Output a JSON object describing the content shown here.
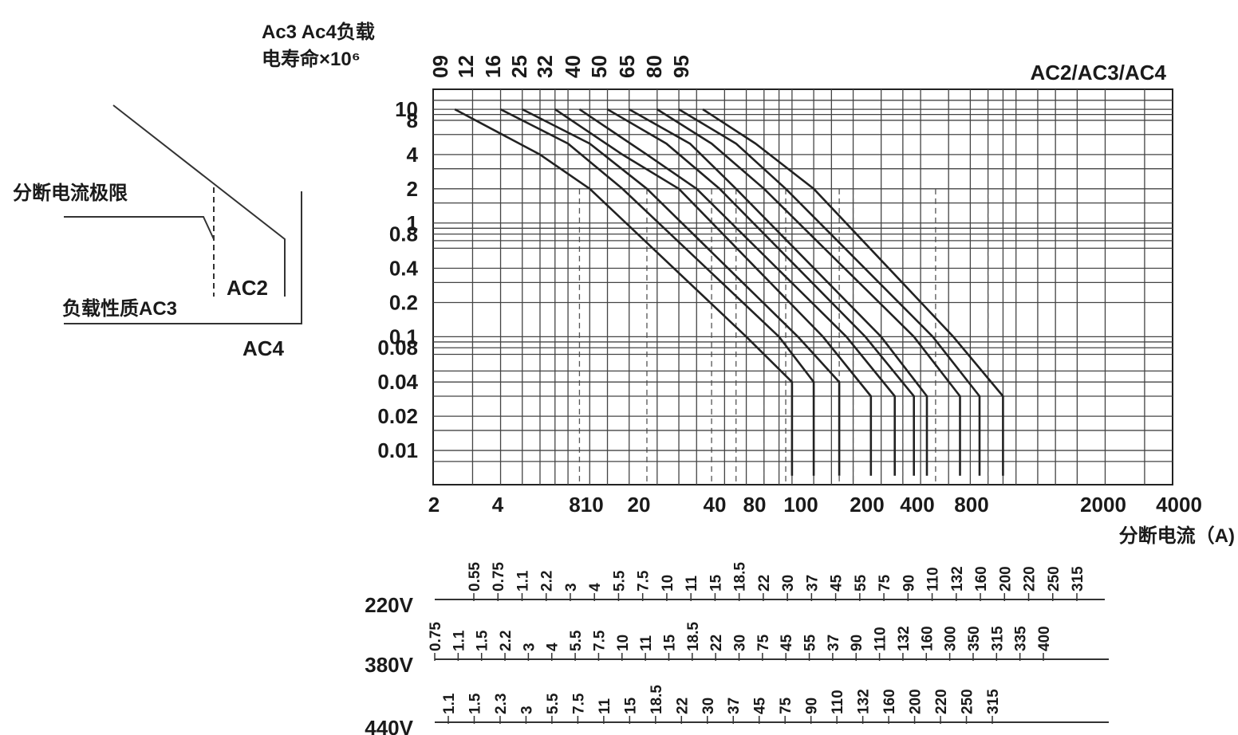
{
  "chart_data": {
    "type": "line",
    "ylabel_line1": "Ac3 Ac4负载",
    "ylabel_line2": "电寿命×10⁶",
    "xlabel": "分断电流（A)",
    "series_title": "AC2/AC3/AC4",
    "x_scale": "log",
    "y_scale": "log",
    "x_ticks": [
      "2",
      "4",
      "810",
      "20",
      "40",
      "80",
      "100",
      "200",
      "400",
      "800",
      "2000",
      "4000"
    ],
    "y_ticks": [
      "10",
      "8",
      "4",
      "2",
      "1",
      "0.8",
      "0.4",
      "0.2",
      "0.1",
      "0.08",
      "0.04",
      "0.02",
      "0.01"
    ],
    "series": [
      {
        "name": "09",
        "points": [
          [
            2.5,
            10
          ],
          [
            6,
            4
          ],
          [
            10,
            2
          ],
          [
            50,
            0.1
          ],
          [
            80,
            0.04
          ],
          [
            80,
            0.006
          ]
        ]
      },
      {
        "name": "12",
        "points": [
          [
            4,
            10
          ],
          [
            8,
            5
          ],
          [
            14,
            2
          ],
          [
            70,
            0.1
          ],
          [
            100,
            0.04
          ],
          [
            100,
            0.006
          ]
        ]
      },
      {
        "name": "16",
        "points": [
          [
            5,
            10
          ],
          [
            10,
            5
          ],
          [
            18,
            2
          ],
          [
            85,
            0.1
          ],
          [
            130,
            0.04
          ],
          [
            130,
            0.006
          ]
        ]
      },
      {
        "name": "25",
        "points": [
          [
            7,
            10
          ],
          [
            14,
            4
          ],
          [
            25,
            2
          ],
          [
            110,
            0.1
          ],
          [
            180,
            0.03
          ],
          [
            180,
            0.006
          ]
        ]
      },
      {
        "name": "32",
        "points": [
          [
            9,
            10
          ],
          [
            18,
            4
          ],
          [
            30,
            2
          ],
          [
            140,
            0.1
          ],
          [
            230,
            0.03
          ],
          [
            230,
            0.006
          ]
        ]
      },
      {
        "name": "40",
        "points": [
          [
            12,
            10
          ],
          [
            22,
            5
          ],
          [
            38,
            2
          ],
          [
            170,
            0.1
          ],
          [
            280,
            0.03
          ],
          [
            280,
            0.006
          ]
        ]
      },
      {
        "name": "50",
        "points": [
          [
            15,
            10
          ],
          [
            28,
            5
          ],
          [
            45,
            2
          ],
          [
            200,
            0.1
          ],
          [
            320,
            0.03
          ],
          [
            320,
            0.006
          ]
        ]
      },
      {
        "name": "65",
        "points": [
          [
            20,
            10
          ],
          [
            35,
            5
          ],
          [
            60,
            2
          ],
          [
            280,
            0.1
          ],
          [
            450,
            0.03
          ],
          [
            450,
            0.006
          ]
        ]
      },
      {
        "name": "80",
        "points": [
          [
            25,
            10
          ],
          [
            45,
            5
          ],
          [
            75,
            2
          ],
          [
            340,
            0.1
          ],
          [
            550,
            0.03
          ],
          [
            550,
            0.006
          ]
        ]
      },
      {
        "name": "95",
        "points": [
          [
            32,
            10
          ],
          [
            55,
            5
          ],
          [
            100,
            2
          ],
          [
            420,
            0.1
          ],
          [
            700,
            0.03
          ],
          [
            700,
            0.006
          ]
        ]
      }
    ],
    "inset_labels": {
      "break_limit": "分断电流极限",
      "load_type": "负载性质AC3",
      "ac2": "AC2",
      "ac4": "AC4"
    },
    "power_scales": [
      {
        "voltage": "220V",
        "values": [
          "0.55",
          "0.75",
          "1.1",
          "2.2",
          "3",
          "4",
          "5.5",
          "7.5",
          "10",
          "11",
          "15",
          "18.5",
          "22",
          "30",
          "37",
          "45",
          "55",
          "75",
          "90",
          "110",
          "132",
          "160",
          "200",
          "220",
          "250",
          "315"
        ]
      },
      {
        "voltage": "380V",
        "values": [
          "0.75",
          "1.1",
          "1.5",
          "2.2",
          "3",
          "4",
          "5.5",
          "7.5",
          "10",
          "11",
          "15",
          "18.5",
          "22",
          "30",
          "75",
          "45",
          "55",
          "37",
          "90",
          "110",
          "132",
          "160",
          "300",
          "350",
          "315",
          "335",
          "400"
        ]
      },
      {
        "voltage": "440V",
        "values": [
          "1.1",
          "1.5",
          "2.3",
          "3",
          "5.5",
          "7.5",
          "11",
          "15",
          "18.5",
          "22",
          "30",
          "37",
          "45",
          "75",
          "90",
          "110",
          "132",
          "160",
          "200",
          "220",
          "250",
          "315"
        ]
      }
    ]
  }
}
